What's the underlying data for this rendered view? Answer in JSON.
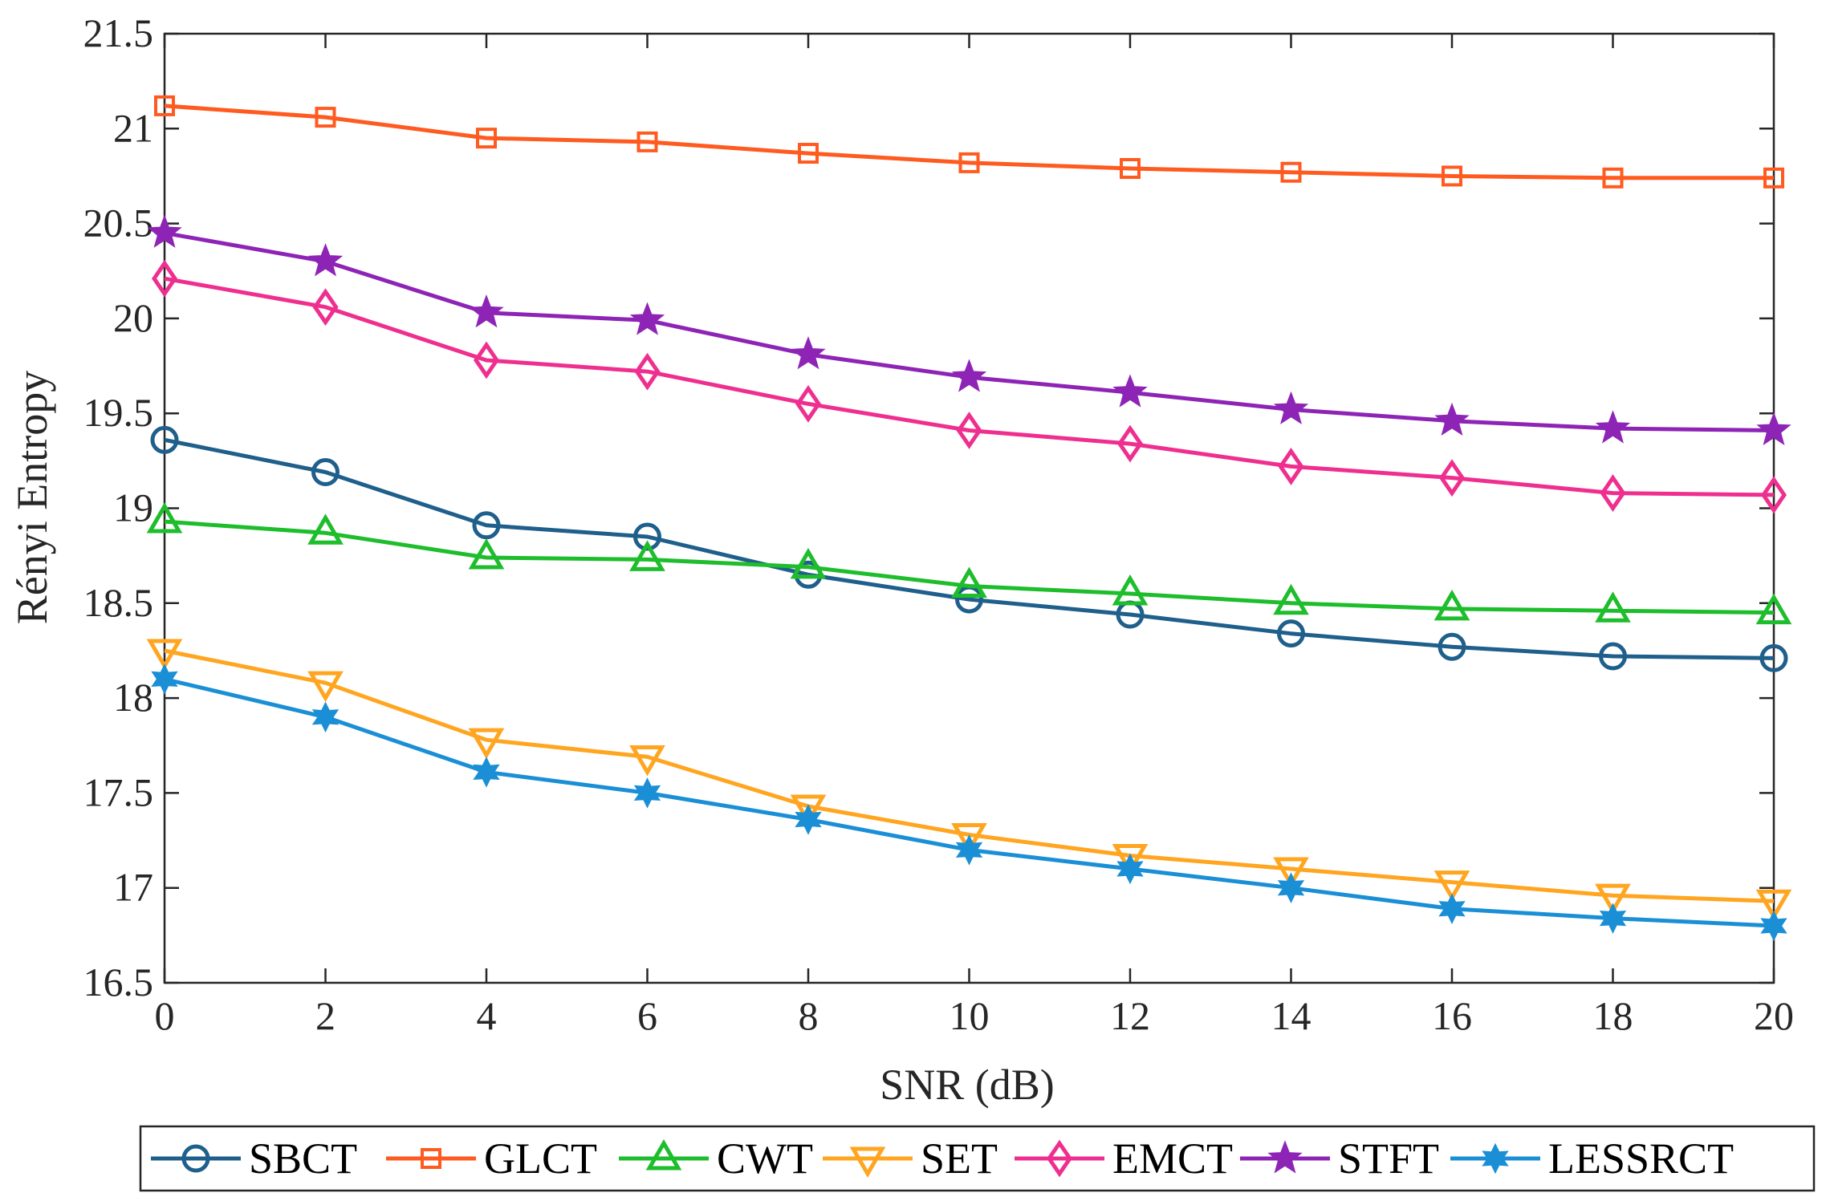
{
  "chart_data": {
    "type": "line",
    "title": "",
    "xlabel": "SNR (dB)",
    "ylabel": "Rényi Entropy",
    "xlim": [
      0,
      20
    ],
    "ylim": [
      16.5,
      21.5
    ],
    "x": [
      0,
      2,
      4,
      6,
      8,
      10,
      12,
      14,
      16,
      18,
      20
    ],
    "x_ticks": [
      "0",
      "2",
      "4",
      "6",
      "8",
      "10",
      "12",
      "14",
      "16",
      "18",
      "20"
    ],
    "y_ticks": [
      "16.5",
      "17",
      "17.5",
      "18",
      "18.5",
      "19",
      "19.5",
      "20",
      "20.5",
      "21",
      "21.5"
    ],
    "grid": false,
    "legend_position": "bottom",
    "series": [
      {
        "name": "SBCT",
        "marker": "circle",
        "color": "#1f5f8b",
        "values": [
          19.36,
          19.19,
          18.91,
          18.85,
          18.65,
          18.52,
          18.44,
          18.34,
          18.27,
          18.22,
          18.21
        ]
      },
      {
        "name": "GLCT",
        "marker": "square",
        "color": "#ff5a1f",
        "values": [
          21.12,
          21.06,
          20.95,
          20.93,
          20.87,
          20.82,
          20.79,
          20.77,
          20.75,
          20.74,
          20.74
        ]
      },
      {
        "name": "CWT",
        "marker": "triangle-up",
        "color": "#1ebd2c",
        "values": [
          18.93,
          18.87,
          18.74,
          18.73,
          18.69,
          18.59,
          18.55,
          18.5,
          18.47,
          18.46,
          18.45
        ]
      },
      {
        "name": "SET",
        "marker": "triangle-down",
        "color": "#ffa51f",
        "values": [
          18.25,
          18.08,
          17.78,
          17.69,
          17.43,
          17.28,
          17.17,
          17.1,
          17.03,
          16.96,
          16.93
        ]
      },
      {
        "name": "EMCT",
        "marker": "diamond",
        "color": "#ef2f8f",
        "values": [
          20.21,
          20.06,
          19.78,
          19.72,
          19.55,
          19.41,
          19.34,
          19.22,
          19.16,
          19.08,
          19.07
        ]
      },
      {
        "name": "STFT",
        "marker": "pentagram",
        "color": "#8e24b6",
        "values": [
          20.45,
          20.3,
          20.03,
          19.99,
          19.81,
          19.69,
          19.61,
          19.52,
          19.46,
          19.42,
          19.41
        ]
      },
      {
        "name": "LESSRCT",
        "marker": "hexagram",
        "color": "#1a8fd6",
        "values": [
          18.1,
          17.9,
          17.61,
          17.5,
          17.36,
          17.2,
          17.1,
          17.0,
          16.89,
          16.84,
          16.8
        ]
      }
    ]
  }
}
